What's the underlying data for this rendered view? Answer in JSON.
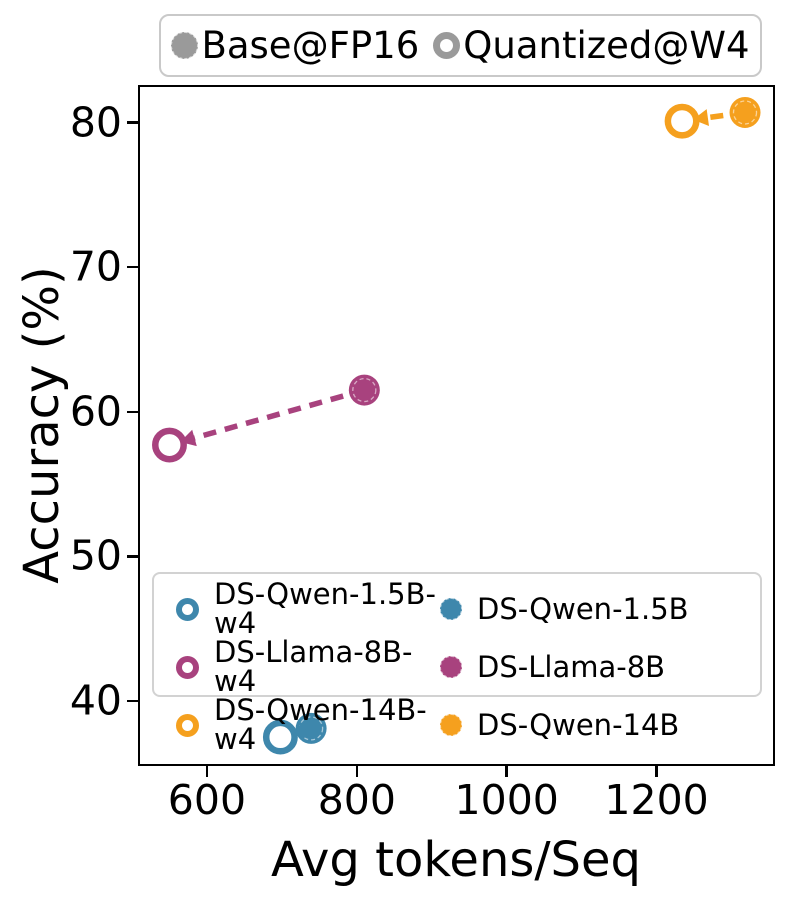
{
  "top_legend": {
    "marker_color": "#9a9a9a",
    "items": [
      {
        "label": "Base@FP16",
        "marker": "filled"
      },
      {
        "label": "Quantized@W4",
        "marker": "open"
      }
    ]
  },
  "chart_data": {
    "type": "scatter",
    "title": "",
    "xlabel": "Avg tokens/Seq",
    "ylabel": "Accuracy (%)",
    "xlim": [
      508,
      1358
    ],
    "ylim": [
      35.5,
      82.6
    ],
    "xticks": [
      600,
      800,
      1000,
      1200
    ],
    "yticks": [
      40,
      50,
      60,
      70,
      80
    ],
    "grid": false,
    "legend_position": "lower center inside axes",
    "series": [
      {
        "name": "DS-Qwen-1.5B",
        "w4_name": "DS-Qwen-1.5B-w4",
        "color": "#3e87ac",
        "base": {
          "x": 739,
          "y": 38.1
        },
        "quantized": {
          "x": 698,
          "y": 37.5
        }
      },
      {
        "name": "DS-Llama-8B",
        "w4_name": "DS-Llama-8B-w4",
        "color": "#a8427e",
        "base": {
          "x": 810,
          "y": 61.5
        },
        "quantized": {
          "x": 550,
          "y": 57.7
        }
      },
      {
        "name": "DS-Qwen-14B",
        "w4_name": "DS-Qwen-14B-w4",
        "color": "#f5a01e",
        "base": {
          "x": 1318,
          "y": 80.7
        },
        "quantized": {
          "x": 1234,
          "y": 80.1
        }
      }
    ],
    "annotation_style": "dashed arrow from base point to quantized point"
  }
}
